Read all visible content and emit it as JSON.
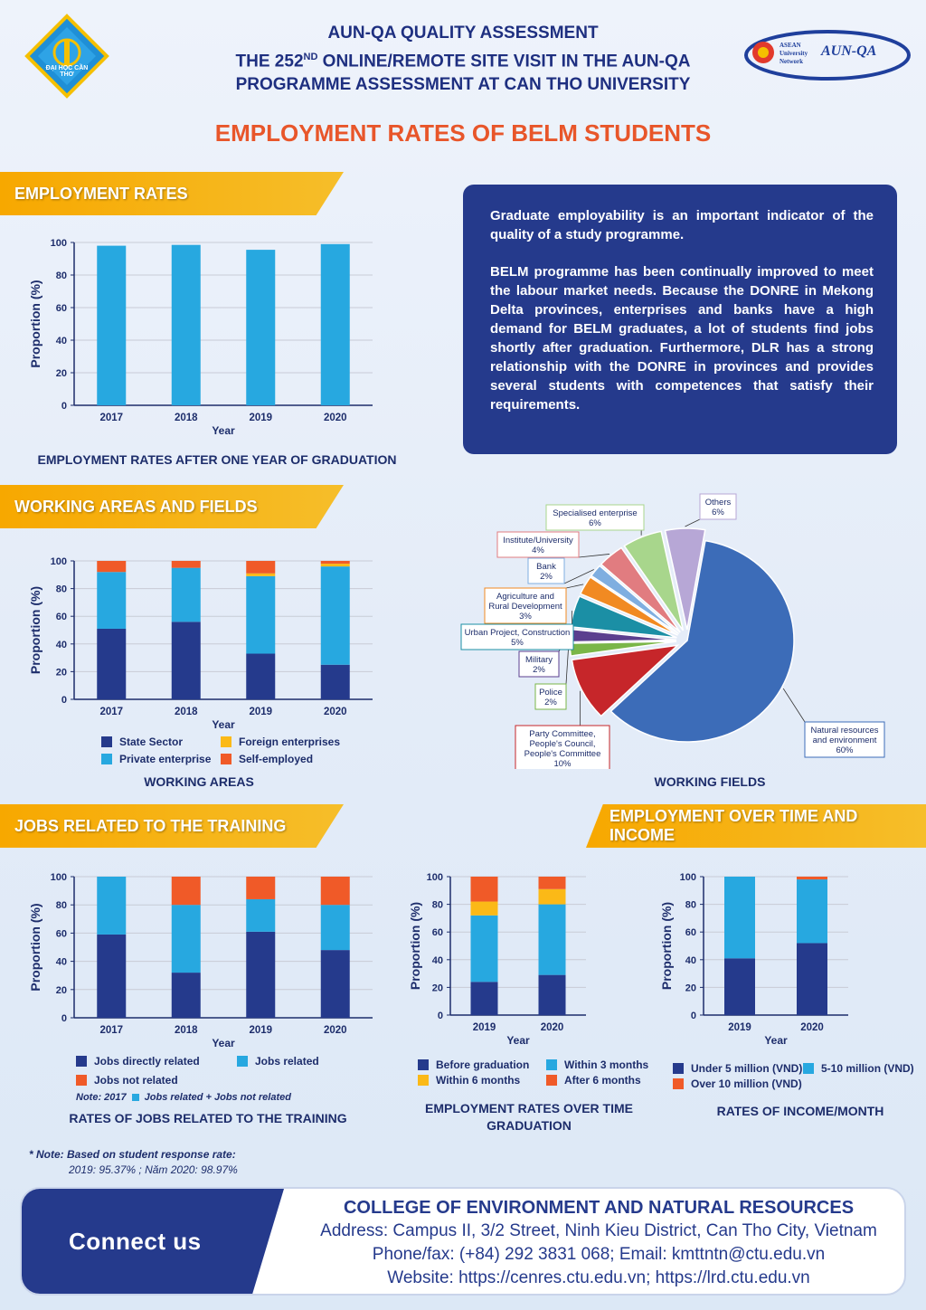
{
  "header": {
    "line1": "AUN-QA QUALITY ASSESSMENT",
    "line2_pre": "THE 252",
    "line2_sup": "ND",
    "line2_post": " ONLINE/REMOTE SITE VISIT IN THE AUN-QA",
    "line3": "PROGRAMME ASSESSMENT AT CAN THO UNIVERSITY",
    "logo_left_text": "ĐẠI HỌC CẦN THƠ",
    "logo_right_text": "ASEAN University Network",
    "logo_right_brand": "AUN-QA",
    "main_title": "EMPLOYMENT RATES OF BELM STUDENTS"
  },
  "colors": {
    "navy": "#253a8c",
    "sky": "#27a8e0",
    "orange": "#f05a28",
    "yellow": "#fbb917",
    "banner": "#f7a800"
  },
  "sections": {
    "employment_rates": "EMPLOYMENT RATES",
    "working_areas": "WORKING AREAS AND FIELDS",
    "jobs_related": "JOBS RELATED TO THE TRAINING",
    "over_time": "EMPLOYMENT OVER TIME AND INCOME"
  },
  "info": {
    "para1": "Graduate employability is an important indicator of the quality of a study programme.",
    "para2": "BELM programme has been continually improved to meet the labour market needs.  Because the DONRE in Mekong Delta provinces, enterprises and banks have a high demand for BELM graduates, a lot of students find jobs shortly after graduation. Furthermore, DLR has a strong relationship with the DONRE in provinces and provides several students with competences that satisfy their requirements."
  },
  "captions": {
    "employment": "EMPLOYMENT RATES AFTER ONE YEAR OF GRADUATION",
    "areas": "WORKING AREAS",
    "fields": "WORKING FIELDS",
    "jobs": "RATES OF JOBS RELATED TO THE TRAINING",
    "overtime": "EMPLOYMENT RATES OVER TIME GRADUATION",
    "income": "RATES OF INCOME/MONTH"
  },
  "legends": {
    "areas": [
      "State Sector",
      "Foreign enterprises",
      "Private enterprise",
      "Self-employed"
    ],
    "jobs": [
      "Jobs directly related",
      "Jobs related",
      "Jobs not related"
    ],
    "jobs_note_pre": "Note:  2017",
    "jobs_note_post": "Jobs related + Jobs not related",
    "overtime": [
      "Before graduation",
      "Within 3 months",
      "Within 6 months",
      "After 6 months"
    ],
    "income": [
      "Under 5 million (VND)",
      "5-10 million (VND)",
      "Over 10 million (VND)"
    ]
  },
  "footnote": {
    "title": "* Note: Based on student response rate:",
    "detail": "2019: 95.37% ; Năm 2020:  98.97%"
  },
  "contact": {
    "connect": "Connect us",
    "college": "COLLEGE OF ENVIRONMENT AND NATURAL RESOURCES",
    "address": "Address: Campus II, 3/2 Street, Ninh Kieu District, Can Tho City, Vietnam",
    "phone": "Phone/fax: (+84) 292 3831 068; Email: kmttntn@ctu.edu.vn",
    "website": "Website: https://cenres.ctu.edu.vn; https://lrd.ctu.edu.vn"
  },
  "chart_data": [
    {
      "id": "employment",
      "type": "bar",
      "categories": [
        "2017",
        "2018",
        "2019",
        "2020"
      ],
      "values": [
        98,
        98.5,
        95.5,
        99
      ],
      "xlabel": "Year",
      "ylabel": "Proportion (%)",
      "ylim": [
        0,
        100
      ],
      "yticks": [
        "0",
        "20",
        "40",
        "60",
        "80",
        "100"
      ]
    },
    {
      "id": "areas",
      "type": "bar",
      "stacked": true,
      "categories": [
        "2017",
        "2018",
        "2019",
        "2020"
      ],
      "series": [
        {
          "name": "State Sector",
          "values": [
            51,
            56,
            33,
            25
          ]
        },
        {
          "name": "Private enterprise",
          "values": [
            41,
            39,
            56,
            71
          ]
        },
        {
          "name": "Foreign enterprises",
          "values": [
            0,
            0,
            2,
            2
          ]
        },
        {
          "name": "Self-employed",
          "values": [
            8,
            5,
            9,
            2
          ]
        }
      ],
      "xlabel": "Year",
      "ylabel": "Proportion (%)",
      "ylim": [
        0,
        100
      ],
      "yticks": [
        "0",
        "20",
        "40",
        "60",
        "80",
        "100"
      ]
    },
    {
      "id": "fields",
      "type": "pie",
      "slices": [
        {
          "label": "Natural resources and environment",
          "value": 60,
          "text": "60%"
        },
        {
          "label": "Party Committee, People's Council, People's Committee",
          "value": 10,
          "text": "10%"
        },
        {
          "label": "Police",
          "value": 2,
          "text": "2%"
        },
        {
          "label": "Military",
          "value": 2,
          "text": "2%"
        },
        {
          "label": "Urban Project, Construction",
          "value": 5,
          "text": "5%"
        },
        {
          "label": "Agriculture and Rural Development",
          "value": 3,
          "text": "3%"
        },
        {
          "label": "Bank",
          "value": 2,
          "text": "2%"
        },
        {
          "label": "Institute/University",
          "value": 4,
          "text": "4%"
        },
        {
          "label": "Specialised enterprise",
          "value": 6,
          "text": "6%"
        },
        {
          "label": "Others",
          "value": 6,
          "text": "6%"
        }
      ]
    },
    {
      "id": "jobs",
      "type": "bar",
      "stacked": true,
      "categories": [
        "2017",
        "2018",
        "2019",
        "2020"
      ],
      "series": [
        {
          "name": "Jobs directly related",
          "values": [
            59,
            32,
            61,
            48
          ]
        },
        {
          "name": "Jobs related",
          "values": [
            41,
            48,
            23,
            32
          ]
        },
        {
          "name": "Jobs not related",
          "values": [
            0,
            20,
            16,
            20
          ]
        }
      ],
      "xlabel": "Year",
      "ylabel": "Proportion (%)",
      "ylim": [
        0,
        100
      ],
      "yticks": [
        "0",
        "20",
        "40",
        "60",
        "80",
        "100"
      ]
    },
    {
      "id": "overtime",
      "type": "bar",
      "stacked": true,
      "categories": [
        "2019",
        "2020"
      ],
      "series": [
        {
          "name": "Before graduation",
          "values": [
            24,
            29
          ]
        },
        {
          "name": "Within 3 months",
          "values": [
            48,
            51
          ]
        },
        {
          "name": "Within 6 months",
          "values": [
            10,
            11
          ]
        },
        {
          "name": "After 6 months",
          "values": [
            18,
            9
          ]
        }
      ],
      "xlabel": "Year",
      "ylabel": "Proportion (%)",
      "ylim": [
        0,
        100
      ],
      "yticks": [
        "0",
        "20",
        "40",
        "60",
        "80",
        "100"
      ]
    },
    {
      "id": "income",
      "type": "bar",
      "stacked": true,
      "categories": [
        "2019",
        "2020"
      ],
      "series": [
        {
          "name": "Under 5 million (VND)",
          "values": [
            41,
            52
          ]
        },
        {
          "name": "5-10 million (VND)",
          "values": [
            59,
            46
          ]
        },
        {
          "name": "Over 10 million (VND)",
          "values": [
            0,
            2
          ]
        }
      ],
      "xlabel": "Year",
      "ylabel": "Proportion (%)",
      "ylim": [
        0,
        100
      ],
      "yticks": [
        "0",
        "20",
        "40",
        "60",
        "80",
        "100"
      ]
    }
  ]
}
